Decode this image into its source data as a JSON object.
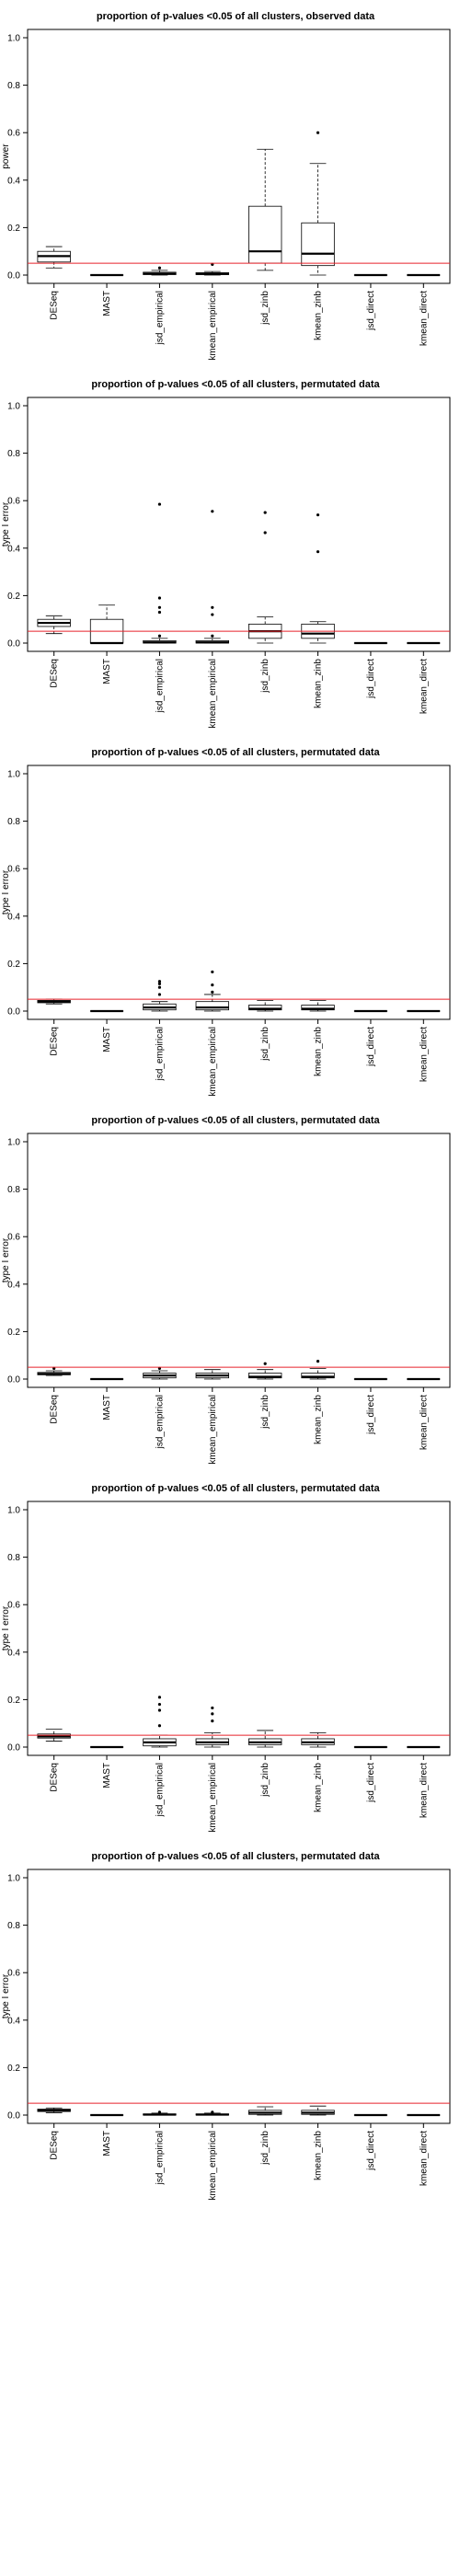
{
  "chart_data": [
    {
      "type": "box",
      "title": "proportion of p-values <0.05 of all clusters, observed data",
      "ylabel": "power",
      "ylim": [
        0,
        1
      ],
      "yticks": [
        "0.0",
        "0.2",
        "0.4",
        "0.6",
        "0.8",
        "1.0"
      ],
      "ref_line": 0.05,
      "categories": [
        "DESeq",
        "MAST",
        "jsd_empirical",
        "kmean_empirical",
        "jsd_zinb",
        "kmean_zinb",
        "jsd_direct",
        "kmean_direct"
      ],
      "boxes": [
        {
          "min": 0.03,
          "q1": 0.055,
          "median": 0.08,
          "q3": 0.1,
          "max": 0.12,
          "outliers": []
        },
        {
          "min": 0.0,
          "q1": 0.0,
          "median": 0.0,
          "q3": 0.0,
          "max": 0.0,
          "outliers": []
        },
        {
          "min": 0.0,
          "q1": 0.002,
          "median": 0.006,
          "q3": 0.012,
          "max": 0.02,
          "outliers": [
            0.03
          ]
        },
        {
          "min": 0.0,
          "q1": 0.002,
          "median": 0.005,
          "q3": 0.01,
          "max": 0.015,
          "outliers": [
            0.045
          ]
        },
        {
          "min": 0.02,
          "q1": 0.05,
          "median": 0.1,
          "q3": 0.29,
          "max": 0.53,
          "outliers": []
        },
        {
          "min": 0.0,
          "q1": 0.04,
          "median": 0.09,
          "q3": 0.22,
          "max": 0.47,
          "outliers": [
            0.6
          ]
        },
        {
          "min": 0.0,
          "q1": 0.0,
          "median": 0.0,
          "q3": 0.0,
          "max": 0.0,
          "outliers": []
        },
        {
          "min": 0.0,
          "q1": 0.0,
          "median": 0.0,
          "q3": 0.0,
          "max": 0.0,
          "outliers": []
        }
      ]
    },
    {
      "type": "box",
      "title": "proportion of p-values <0.05 of all clusters, permutated data",
      "ylabel": "type I error",
      "ylim": [
        0,
        1
      ],
      "yticks": [
        "0.0",
        "0.2",
        "0.4",
        "0.6",
        "0.8",
        "1.0"
      ],
      "ref_line": 0.05,
      "categories": [
        "DESeq",
        "MAST",
        "jsd_empirical",
        "kmean_empirical",
        "jsd_zinb",
        "kmean_zinb",
        "jsd_direct",
        "kmean_direct"
      ],
      "boxes": [
        {
          "min": 0.04,
          "q1": 0.07,
          "median": 0.085,
          "q3": 0.1,
          "max": 0.115,
          "outliers": []
        },
        {
          "min": 0.0,
          "q1": 0.0,
          "median": 0.0,
          "q3": 0.1,
          "max": 0.16,
          "outliers": []
        },
        {
          "min": 0.0,
          "q1": 0.0,
          "median": 0.003,
          "q3": 0.01,
          "max": 0.02,
          "outliers": [
            0.03,
            0.13,
            0.15,
            0.19,
            0.585
          ]
        },
        {
          "min": 0.0,
          "q1": 0.0,
          "median": 0.003,
          "q3": 0.01,
          "max": 0.02,
          "outliers": [
            0.03,
            0.12,
            0.15,
            0.555
          ]
        },
        {
          "min": 0.0,
          "q1": 0.02,
          "median": 0.05,
          "q3": 0.08,
          "max": 0.11,
          "outliers": [
            0.465,
            0.55
          ]
        },
        {
          "min": 0.0,
          "q1": 0.02,
          "median": 0.04,
          "q3": 0.08,
          "max": 0.09,
          "outliers": [
            0.385,
            0.54
          ]
        },
        {
          "min": 0.0,
          "q1": 0.0,
          "median": 0.0,
          "q3": 0.0,
          "max": 0.0,
          "outliers": []
        },
        {
          "min": 0.0,
          "q1": 0.0,
          "median": 0.0,
          "q3": 0.0,
          "max": 0.0,
          "outliers": []
        }
      ]
    },
    {
      "type": "box",
      "title": "proportion of p-values <0.05 of all clusters, permutated data",
      "ylabel": "type I error",
      "ylim": [
        0,
        1
      ],
      "yticks": [
        "0.0",
        "0.2",
        "0.4",
        "0.6",
        "0.8",
        "1.0"
      ],
      "ref_line": 0.05,
      "categories": [
        "DESeq",
        "MAST",
        "jsd_empirical",
        "kmean_empirical",
        "jsd_zinb",
        "kmean_zinb",
        "jsd_direct",
        "kmean_direct"
      ],
      "boxes": [
        {
          "min": 0.03,
          "q1": 0.035,
          "median": 0.04,
          "q3": 0.045,
          "max": 0.05,
          "outliers": []
        },
        {
          "min": 0.0,
          "q1": 0.0,
          "median": 0.0,
          "q3": 0.0,
          "max": 0.0,
          "outliers": []
        },
        {
          "min": 0.0,
          "q1": 0.005,
          "median": 0.015,
          "q3": 0.03,
          "max": 0.04,
          "outliers": [
            0.07,
            0.1,
            0.115,
            0.125
          ]
        },
        {
          "min": 0.0,
          "q1": 0.005,
          "median": 0.015,
          "q3": 0.04,
          "max": 0.07,
          "outliers": [
            0.08,
            0.11,
            0.165
          ]
        },
        {
          "min": 0.0,
          "q1": 0.005,
          "median": 0.01,
          "q3": 0.025,
          "max": 0.045,
          "outliers": []
        },
        {
          "min": 0.0,
          "q1": 0.005,
          "median": 0.01,
          "q3": 0.025,
          "max": 0.045,
          "outliers": []
        },
        {
          "min": 0.0,
          "q1": 0.0,
          "median": 0.0,
          "q3": 0.0,
          "max": 0.0,
          "outliers": []
        },
        {
          "min": 0.0,
          "q1": 0.0,
          "median": 0.0,
          "q3": 0.0,
          "max": 0.0,
          "outliers": []
        }
      ]
    },
    {
      "type": "box",
      "title": "proportion of p-values <0.05 of all clusters, permutated data",
      "ylabel": "type I error",
      "ylim": [
        0,
        1
      ],
      "yticks": [
        "0.0",
        "0.2",
        "0.4",
        "0.6",
        "0.8",
        "1.0"
      ],
      "ref_line": 0.05,
      "categories": [
        "DESeq",
        "MAST",
        "jsd_empirical",
        "kmean_empirical",
        "jsd_zinb",
        "kmean_zinb",
        "jsd_direct",
        "kmean_direct"
      ],
      "boxes": [
        {
          "min": 0.015,
          "q1": 0.018,
          "median": 0.022,
          "q3": 0.028,
          "max": 0.035,
          "outliers": [
            0.045
          ]
        },
        {
          "min": 0.0,
          "q1": 0.0,
          "median": 0.0,
          "q3": 0.0,
          "max": 0.0,
          "outliers": []
        },
        {
          "min": 0.0,
          "q1": 0.005,
          "median": 0.015,
          "q3": 0.025,
          "max": 0.035,
          "outliers": [
            0.045
          ]
        },
        {
          "min": 0.0,
          "q1": 0.005,
          "median": 0.015,
          "q3": 0.025,
          "max": 0.04,
          "outliers": []
        },
        {
          "min": 0.0,
          "q1": 0.005,
          "median": 0.01,
          "q3": 0.025,
          "max": 0.04,
          "outliers": [
            0.065
          ]
        },
        {
          "min": 0.0,
          "q1": 0.005,
          "median": 0.01,
          "q3": 0.025,
          "max": 0.045,
          "outliers": [
            0.075
          ]
        },
        {
          "min": 0.0,
          "q1": 0.0,
          "median": 0.0,
          "q3": 0.0,
          "max": 0.0,
          "outliers": []
        },
        {
          "min": 0.0,
          "q1": 0.0,
          "median": 0.0,
          "q3": 0.0,
          "max": 0.0,
          "outliers": []
        }
      ]
    },
    {
      "type": "box",
      "title": "proportion of p-values <0.05 of all clusters, permutated data",
      "ylabel": "type I error",
      "ylim": [
        0,
        1
      ],
      "yticks": [
        "0.0",
        "0.2",
        "0.4",
        "0.6",
        "0.8",
        "1.0"
      ],
      "ref_line": 0.05,
      "categories": [
        "DESeq",
        "MAST",
        "jsd_empirical",
        "kmean_empirical",
        "jsd_zinb",
        "kmean_zinb",
        "jsd_direct",
        "kmean_direct"
      ],
      "boxes": [
        {
          "min": 0.025,
          "q1": 0.038,
          "median": 0.045,
          "q3": 0.055,
          "max": 0.075,
          "outliers": []
        },
        {
          "min": 0.0,
          "q1": 0.0,
          "median": 0.0,
          "q3": 0.0,
          "max": 0.0,
          "outliers": []
        },
        {
          "min": 0.0,
          "q1": 0.005,
          "median": 0.02,
          "q3": 0.035,
          "max": 0.05,
          "outliers": [
            0.09,
            0.155,
            0.18,
            0.21
          ]
        },
        {
          "min": 0.0,
          "q1": 0.01,
          "median": 0.02,
          "q3": 0.035,
          "max": 0.06,
          "outliers": [
            0.11,
            0.14,
            0.165
          ]
        },
        {
          "min": 0.0,
          "q1": 0.01,
          "median": 0.02,
          "q3": 0.035,
          "max": 0.07,
          "outliers": []
        },
        {
          "min": 0.0,
          "q1": 0.01,
          "median": 0.02,
          "q3": 0.035,
          "max": 0.06,
          "outliers": []
        },
        {
          "min": 0.0,
          "q1": 0.0,
          "median": 0.0,
          "q3": 0.0,
          "max": 0.0,
          "outliers": []
        },
        {
          "min": 0.0,
          "q1": 0.0,
          "median": 0.0,
          "q3": 0.0,
          "max": 0.0,
          "outliers": []
        }
      ]
    },
    {
      "type": "box",
      "title": "proportion of p-values <0.05 of all clusters, permutated data",
      "ylabel": "type I error",
      "ylim": [
        0,
        1
      ],
      "yticks": [
        "0.0",
        "0.2",
        "0.4",
        "0.6",
        "0.8",
        "1.0"
      ],
      "ref_line": 0.05,
      "categories": [
        "DESeq",
        "MAST",
        "jsd_empirical",
        "kmean_empirical",
        "jsd_zinb",
        "kmean_zinb",
        "jsd_direct",
        "kmean_direct"
      ],
      "boxes": [
        {
          "min": 0.01,
          "q1": 0.015,
          "median": 0.02,
          "q3": 0.025,
          "max": 0.03,
          "outliers": []
        },
        {
          "min": 0.0,
          "q1": 0.0,
          "median": 0.0,
          "q3": 0.0,
          "max": 0.0,
          "outliers": []
        },
        {
          "min": 0.0,
          "q1": 0.0,
          "median": 0.002,
          "q3": 0.005,
          "max": 0.008,
          "outliers": [
            0.012
          ]
        },
        {
          "min": 0.0,
          "q1": 0.0,
          "median": 0.002,
          "q3": 0.005,
          "max": 0.008,
          "outliers": [
            0.012
          ]
        },
        {
          "min": 0.0,
          "q1": 0.003,
          "median": 0.01,
          "q3": 0.02,
          "max": 0.035,
          "outliers": []
        },
        {
          "min": 0.0,
          "q1": 0.003,
          "median": 0.01,
          "q3": 0.02,
          "max": 0.038,
          "outliers": []
        },
        {
          "min": 0.0,
          "q1": 0.0,
          "median": 0.0,
          "q3": 0.0,
          "max": 0.0,
          "outliers": []
        },
        {
          "min": 0.0,
          "q1": 0.0,
          "median": 0.0,
          "q3": 0.0,
          "max": 0.0,
          "outliers": []
        }
      ]
    }
  ]
}
